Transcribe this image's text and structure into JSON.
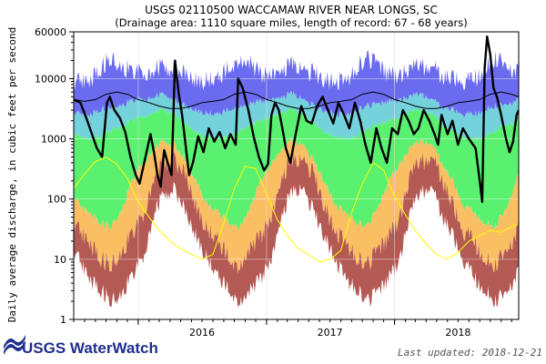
{
  "chart_data": {
    "type": "area",
    "title": "USGS 02110500 WACCAMAW RIVER NEAR LONGS, SC",
    "subtitle": "(Drainage area: 1110 square miles, length of record: 67 - 68 years)",
    "ylabel": "Daily average discharge, in cubic feet per second",
    "y_scale": "log",
    "ylim": [
      1,
      60000
    ],
    "y_ticks": [
      {
        "value": 1,
        "label": "1"
      },
      {
        "value": 10,
        "label": "10"
      },
      {
        "value": 100,
        "label": "100"
      },
      {
        "value": 1000,
        "label": "1000"
      },
      {
        "value": 10000,
        "label": "10000"
      },
      {
        "value": 60000,
        "label": "60000"
      }
    ],
    "xlim": [
      "2015-07-01",
      "2018-12-21"
    ],
    "x_ticks": [
      {
        "value": "2016-07-01",
        "label": "2016"
      },
      {
        "value": "2017-07-01",
        "label": "2017"
      },
      {
        "value": "2018-07-01",
        "label": "2018"
      }
    ],
    "year_boundaries": [
      "2016-01-01",
      "2017-01-01",
      "2018-01-01"
    ],
    "grid": true,
    "bands": [
      {
        "color": "#6b6bf0",
        "level": "max"
      },
      {
        "color": "#74d2dd",
        "level": "p90"
      },
      {
        "color": "#5af070",
        "level": "p75"
      },
      {
        "color": "#fbbf63",
        "level": "p25"
      },
      {
        "color": "#b45a55",
        "level": "p10"
      }
    ],
    "band_profiles": [
      {
        "month": 1,
        "min": 10,
        "p10": 50,
        "p25": 380,
        "p75": 2300,
        "p90": 4500,
        "max": 12000
      },
      {
        "month": 2,
        "min": 60,
        "p10": 250,
        "p25": 700,
        "p75": 2800,
        "p90": 5000,
        "max": 14000
      },
      {
        "month": 3,
        "min": 120,
        "p10": 400,
        "p25": 900,
        "p75": 3000,
        "p90": 5500,
        "max": 16000
      },
      {
        "month": 4,
        "min": 150,
        "p10": 450,
        "p25": 800,
        "p75": 2600,
        "p90": 4500,
        "max": 14000
      },
      {
        "month": 5,
        "min": 60,
        "p10": 250,
        "p25": 420,
        "p75": 1800,
        "p90": 3500,
        "max": 12000
      },
      {
        "month": 6,
        "min": 25,
        "p10": 80,
        "p25": 200,
        "p75": 1300,
        "p90": 3000,
        "max": 10000
      },
      {
        "month": 7,
        "min": 10,
        "p10": 30,
        "p25": 80,
        "p75": 1100,
        "p90": 2600,
        "max": 9000
      },
      {
        "month": 8,
        "min": 5,
        "p10": 20,
        "p25": 60,
        "p75": 1000,
        "p90": 2500,
        "max": 9500
      },
      {
        "month": 9,
        "min": 3,
        "p10": 10,
        "p25": 40,
        "p75": 1100,
        "p90": 3000,
        "max": 14000
      },
      {
        "month": 10,
        "min": 2,
        "p10": 8,
        "p25": 35,
        "p75": 1400,
        "p90": 3500,
        "max": 22000
      },
      {
        "month": 11,
        "min": 3,
        "p10": 15,
        "p25": 70,
        "p75": 1700,
        "p90": 3800,
        "max": 18000
      },
      {
        "month": 12,
        "min": 5,
        "p10": 25,
        "p25": 200,
        "p75": 2000,
        "p90": 4200,
        "max": 12000
      }
    ],
    "series": [
      {
        "id": "daily",
        "color": "#000000",
        "points": [
          [
            "2015-07-01",
            4500
          ],
          [
            "2015-07-20",
            4000
          ],
          [
            "2015-08-05",
            2300
          ],
          [
            "2015-08-20",
            1300
          ],
          [
            "2015-09-05",
            700
          ],
          [
            "2015-09-20",
            500
          ],
          [
            "2015-10-04",
            4000
          ],
          [
            "2015-10-12",
            5000
          ],
          [
            "2015-10-25",
            3000
          ],
          [
            "2015-11-10",
            2200
          ],
          [
            "2015-11-25",
            1300
          ],
          [
            "2015-12-10",
            500
          ],
          [
            "2015-12-25",
            250
          ],
          [
            "2016-01-05",
            180
          ],
          [
            "2016-01-20",
            450
          ],
          [
            "2016-02-05",
            1200
          ],
          [
            "2016-02-15",
            600
          ],
          [
            "2016-02-25",
            250
          ],
          [
            "2016-03-05",
            160
          ],
          [
            "2016-03-15",
            650
          ],
          [
            "2016-03-25",
            400
          ],
          [
            "2016-04-05",
            250
          ],
          [
            "2016-04-15",
            20000
          ],
          [
            "2016-04-25",
            6000
          ],
          [
            "2016-05-05",
            2500
          ],
          [
            "2016-05-15",
            800
          ],
          [
            "2016-05-25",
            250
          ],
          [
            "2016-06-05",
            400
          ],
          [
            "2016-06-20",
            1100
          ],
          [
            "2016-07-05",
            600
          ],
          [
            "2016-07-20",
            1500
          ],
          [
            "2016-08-05",
            900
          ],
          [
            "2016-08-20",
            1300
          ],
          [
            "2016-09-05",
            700
          ],
          [
            "2016-09-20",
            1200
          ],
          [
            "2016-10-05",
            800
          ],
          [
            "2016-10-12",
            10000
          ],
          [
            "2016-10-25",
            7000
          ],
          [
            "2016-11-10",
            3000
          ],
          [
            "2016-11-25",
            1100
          ],
          [
            "2016-12-10",
            500
          ],
          [
            "2016-12-25",
            300
          ],
          [
            "2017-01-05",
            380
          ],
          [
            "2017-01-15",
            2500
          ],
          [
            "2017-01-25",
            4000
          ],
          [
            "2017-02-05",
            3000
          ],
          [
            "2017-02-15",
            1500
          ],
          [
            "2017-02-25",
            700
          ],
          [
            "2017-03-10",
            400
          ],
          [
            "2017-03-25",
            1200
          ],
          [
            "2017-04-10",
            3500
          ],
          [
            "2017-04-25",
            2000
          ],
          [
            "2017-05-10",
            1800
          ],
          [
            "2017-05-25",
            3500
          ],
          [
            "2017-06-10",
            5000
          ],
          [
            "2017-06-25",
            3000
          ],
          [
            "2017-07-10",
            1800
          ],
          [
            "2017-07-25",
            4000
          ],
          [
            "2017-08-10",
            2500
          ],
          [
            "2017-08-25",
            1500
          ],
          [
            "2017-09-10",
            4000
          ],
          [
            "2017-09-25",
            2000
          ],
          [
            "2017-10-10",
            800
          ],
          [
            "2017-10-25",
            400
          ],
          [
            "2017-11-10",
            1500
          ],
          [
            "2017-11-25",
            700
          ],
          [
            "2017-12-10",
            400
          ],
          [
            "2017-12-25",
            1500
          ],
          [
            "2018-01-10",
            1200
          ],
          [
            "2018-01-25",
            3000
          ],
          [
            "2018-02-10",
            2000
          ],
          [
            "2018-02-25",
            1200
          ],
          [
            "2018-03-10",
            1500
          ],
          [
            "2018-03-25",
            3000
          ],
          [
            "2018-04-10",
            2000
          ],
          [
            "2018-04-25",
            1200
          ],
          [
            "2018-05-05",
            800
          ],
          [
            "2018-05-15",
            2500
          ],
          [
            "2018-06-01",
            1200
          ],
          [
            "2018-06-15",
            2000
          ],
          [
            "2018-07-01",
            800
          ],
          [
            "2018-07-15",
            1500
          ],
          [
            "2018-08-01",
            1000
          ],
          [
            "2018-08-20",
            700
          ],
          [
            "2018-09-01",
            200
          ],
          [
            "2018-09-08",
            90
          ],
          [
            "2018-09-15",
            15000
          ],
          [
            "2018-09-22",
            50000
          ],
          [
            "2018-10-01",
            25000
          ],
          [
            "2018-10-10",
            7000
          ],
          [
            "2018-10-20",
            5000
          ],
          [
            "2018-11-01",
            2500
          ],
          [
            "2018-11-15",
            1000
          ],
          [
            "2018-11-25",
            600
          ],
          [
            "2018-12-05",
            900
          ],
          [
            "2018-12-15",
            2500
          ],
          [
            "2018-12-21",
            3000
          ]
        ]
      },
      {
        "id": "mean",
        "color": "#000000",
        "points": [
          [
            "2015-07-01",
            4500
          ],
          [
            "2015-08-01",
            4200
          ],
          [
            "2015-09-01",
            4500
          ],
          [
            "2015-10-01",
            5500
          ],
          [
            "2015-11-01",
            6000
          ],
          [
            "2015-12-01",
            5500
          ],
          [
            "2016-01-01",
            4500
          ],
          [
            "2016-02-01",
            4000
          ],
          [
            "2016-03-01",
            3500
          ],
          [
            "2016-04-01",
            3200
          ],
          [
            "2016-05-01",
            3200
          ],
          [
            "2016-06-01",
            3500
          ],
          [
            "2016-07-01",
            4000
          ],
          [
            "2016-08-01",
            4200
          ],
          [
            "2016-09-01",
            4500
          ],
          [
            "2016-10-01",
            5500
          ],
          [
            "2016-11-01",
            6000
          ],
          [
            "2016-12-01",
            5500
          ],
          [
            "2017-01-01",
            4500
          ],
          [
            "2017-02-01",
            4000
          ],
          [
            "2017-03-01",
            3500
          ],
          [
            "2017-04-01",
            3200
          ],
          [
            "2017-05-01",
            3200
          ],
          [
            "2017-06-01",
            3500
          ],
          [
            "2017-07-01",
            4000
          ],
          [
            "2017-08-01",
            4200
          ],
          [
            "2017-09-01",
            4500
          ],
          [
            "2017-10-01",
            5500
          ],
          [
            "2017-11-01",
            6000
          ],
          [
            "2017-12-01",
            5500
          ],
          [
            "2018-01-01",
            4500
          ],
          [
            "2018-02-01",
            4000
          ],
          [
            "2018-03-01",
            3500
          ],
          [
            "2018-04-01",
            3200
          ],
          [
            "2018-05-01",
            3200
          ],
          [
            "2018-06-01",
            3500
          ],
          [
            "2018-07-01",
            4000
          ],
          [
            "2018-08-01",
            4200
          ],
          [
            "2018-09-01",
            4500
          ],
          [
            "2018-10-01",
            5500
          ],
          [
            "2018-11-01",
            6000
          ],
          [
            "2018-12-01",
            5500
          ],
          [
            "2018-12-21",
            5000
          ]
        ]
      },
      {
        "id": "min",
        "color": "#ffff00",
        "points": [
          [
            "2015-07-01",
            150
          ],
          [
            "2015-08-01",
            260
          ],
          [
            "2015-09-01",
            420
          ],
          [
            "2015-10-01",
            500
          ],
          [
            "2015-11-01",
            380
          ],
          [
            "2015-12-01",
            220
          ],
          [
            "2016-01-01",
            90
          ],
          [
            "2016-02-01",
            50
          ],
          [
            "2016-03-01",
            30
          ],
          [
            "2016-04-01",
            20
          ],
          [
            "2016-05-01",
            15
          ],
          [
            "2016-06-01",
            12
          ],
          [
            "2016-07-01",
            10
          ],
          [
            "2016-08-01",
            12
          ],
          [
            "2016-09-01",
            40
          ],
          [
            "2016-10-01",
            150
          ],
          [
            "2016-11-01",
            350
          ],
          [
            "2016-12-01",
            320
          ],
          [
            "2017-01-01",
            120
          ],
          [
            "2017-02-01",
            45
          ],
          [
            "2017-03-01",
            25
          ],
          [
            "2017-04-01",
            15
          ],
          [
            "2017-05-01",
            12
          ],
          [
            "2017-06-01",
            9
          ],
          [
            "2017-07-01",
            10
          ],
          [
            "2017-08-01",
            14
          ],
          [
            "2017-09-01",
            60
          ],
          [
            "2017-10-01",
            180
          ],
          [
            "2017-11-01",
            400
          ],
          [
            "2017-12-01",
            300
          ],
          [
            "2018-01-01",
            110
          ],
          [
            "2018-02-01",
            55
          ],
          [
            "2018-03-01",
            30
          ],
          [
            "2018-04-01",
            18
          ],
          [
            "2018-05-01",
            12
          ],
          [
            "2018-06-01",
            10
          ],
          [
            "2018-07-01",
            13
          ],
          [
            "2018-08-01",
            20
          ],
          [
            "2018-09-01",
            25
          ],
          [
            "2018-10-01",
            30
          ],
          [
            "2018-11-01",
            28
          ],
          [
            "2018-12-01",
            35
          ],
          [
            "2018-12-21",
            38
          ]
        ]
      }
    ]
  },
  "footer": {
    "logo_text": "USGS WaterWatch",
    "last_updated": "Last updated: 2018-12-21"
  },
  "colors": {
    "logo_blue": "#1e2f8c"
  }
}
